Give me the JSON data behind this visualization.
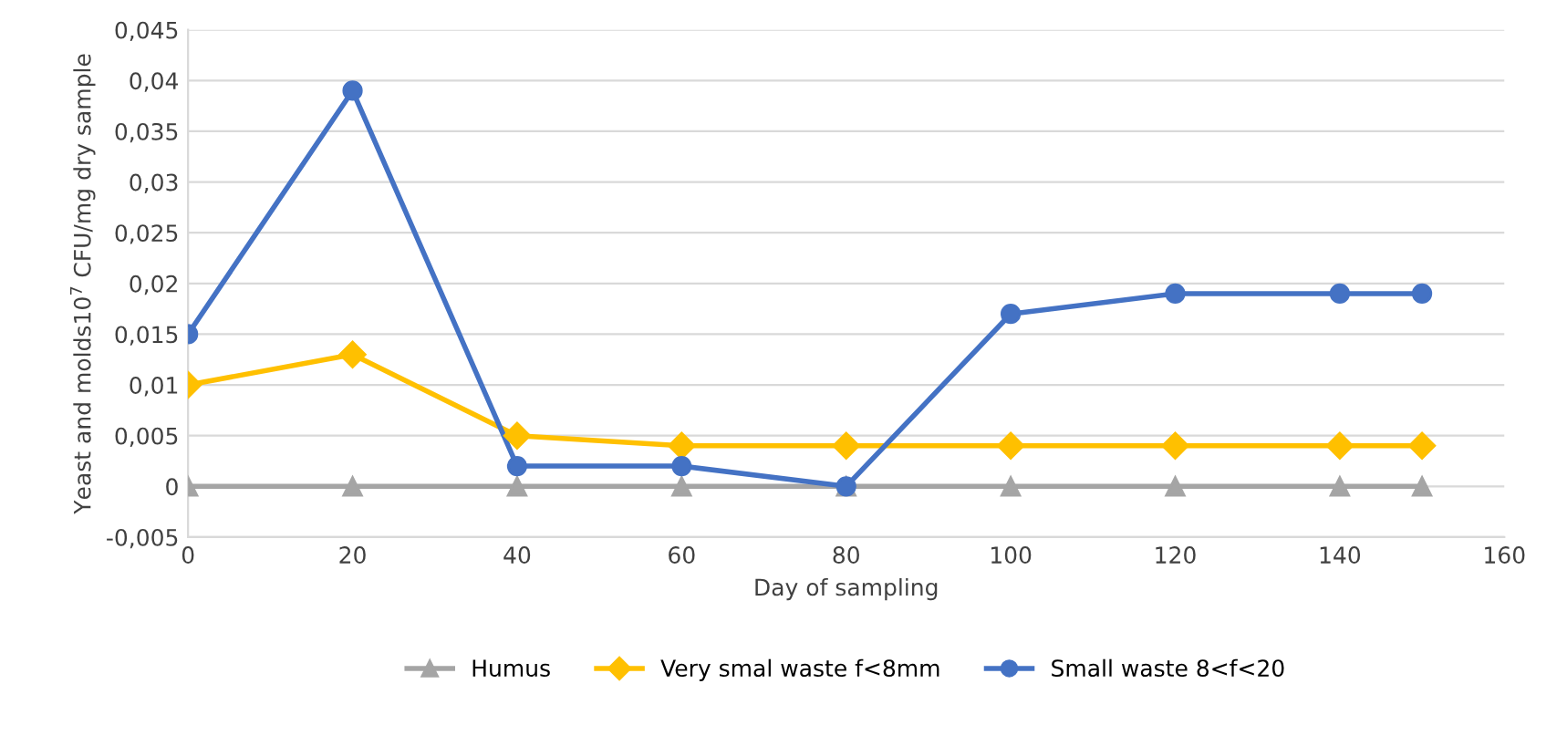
{
  "chart_data": {
    "type": "line",
    "xlabel": "Day of sampling",
    "ylabel": "Yeast and molds10$^{7}$ CFU/mg dry sample",
    "x": [
      0,
      20,
      40,
      60,
      80,
      100,
      120,
      140,
      150
    ],
    "series": [
      {
        "name": "Humus",
        "color": "#a5a5a5",
        "marker": "triangle",
        "values": [
          0,
          0,
          0,
          0,
          0,
          0,
          0,
          0,
          0
        ]
      },
      {
        "name": "Very smal waste f<8mm",
        "color": "#ffc000",
        "marker": "diamond",
        "values": [
          0.01,
          0.013,
          0.005,
          0.004,
          0.004,
          0.004,
          0.004,
          0.004,
          0.004
        ]
      },
      {
        "name": "Small waste 8<f<20",
        "color": "#4472c4",
        "marker": "circle",
        "values": [
          0.015,
          0.039,
          0.002,
          0.002,
          0,
          0.017,
          0.019,
          0.019,
          0.019
        ]
      }
    ],
    "xlim": [
      0,
      160
    ],
    "xticks": [
      0,
      20,
      40,
      60,
      80,
      100,
      120,
      140,
      160
    ],
    "ylim": [
      -0.005,
      0.045
    ],
    "yticks": [
      {
        "value": -0.005,
        "label": "-0,005"
      },
      0,
      {
        "value": 0.005,
        "label": "0,005"
      },
      {
        "value": 0.01,
        "label": "0,01"
      },
      {
        "value": 0.015,
        "label": "0,015"
      },
      {
        "value": 0.02,
        "label": "0,02"
      },
      {
        "value": 0.025,
        "label": "0,025"
      },
      {
        "value": 0.03,
        "label": "0,03"
      },
      {
        "value": 0.035,
        "label": "0,035"
      },
      {
        "value": 0.04,
        "label": "0,04"
      },
      {
        "value": 0.045,
        "label": "0,045"
      }
    ],
    "grid": "y",
    "legend": "bottom",
    "line_style": "solid"
  }
}
